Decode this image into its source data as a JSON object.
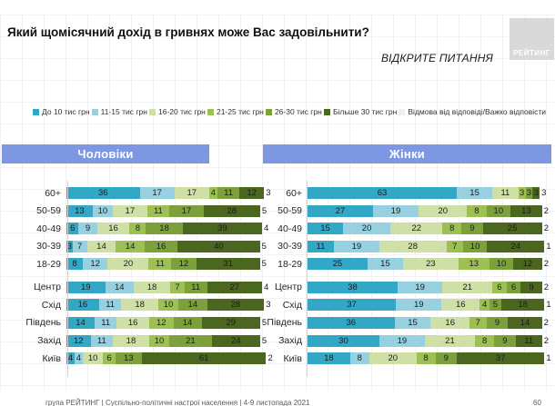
{
  "slide": {
    "title": "Який щомісячний дохід в гривнях може Вас задовільнити?",
    "subtitle": "ВІДКРИТЕ ПИТАННЯ",
    "logo_text": "РЕЙТИНГ",
    "footer": "група РЕЙТИНГ | Суспільно-політичні настрої населення | 4-9 листопада 2021",
    "page_number": "60"
  },
  "colors": {
    "header_bar": "#7d97e2",
    "logo_bg": "#d9d9d9"
  },
  "legend": [
    {
      "label": "До 10 тис грн",
      "color": "#33a7c6"
    },
    {
      "label": "11-15 тис грн",
      "color": "#97d0e0"
    },
    {
      "label": "16-20 тис грн",
      "color": "#cfe0a6"
    },
    {
      "label": "21-25 тис грн",
      "color": "#9dc054"
    },
    {
      "label": "26-30 тис грн",
      "color": "#7ba03c"
    },
    {
      "label": "Більше 30 тис грн",
      "color": "#4a661f"
    },
    {
      "label": "Відмова від відповіді/Важко відповісти",
      "color": "#f0f0f0"
    }
  ],
  "chart_data": [
    {
      "type": "bar",
      "title": "Чоловіки",
      "stacked": true,
      "orientation": "horizontal",
      "unit": "percent",
      "series_names": [
        "До 10 тис грн",
        "11-15 тис грн",
        "16-20 тис грн",
        "21-25 тис грн",
        "26-30 тис грн",
        "Більше 30 тис грн",
        "Відмова від відповіді/Важко відповісти"
      ],
      "groups": [
        {
          "categories": [
            "60+",
            "50-59",
            "40-49",
            "30-39",
            "18-29"
          ],
          "rows": [
            [
              36,
              17,
              17,
              4,
              11,
              12,
              3
            ],
            [
              13,
              10,
              17,
              11,
              17,
              28,
              5
            ],
            [
              6,
              9,
              16,
              8,
              18,
              39,
              4
            ],
            [
              3,
              7,
              14,
              14,
              16,
              40,
              5
            ],
            [
              8,
              12,
              20,
              11,
              12,
              31,
              5
            ]
          ]
        },
        {
          "categories": [
            "Центр",
            "Схід",
            "Південь",
            "Захід",
            "Київ"
          ],
          "rows": [
            [
              19,
              14,
              18,
              7,
              11,
              27,
              4
            ],
            [
              16,
              11,
              18,
              10,
              14,
              28,
              3
            ],
            [
              14,
              11,
              16,
              12,
              14,
              29,
              5
            ],
            [
              12,
              11,
              18,
              10,
              21,
              24,
              5
            ],
            [
              4,
              4,
              10,
              6,
              13,
              61,
              2
            ]
          ]
        }
      ]
    },
    {
      "type": "bar",
      "title": "Жінки",
      "stacked": true,
      "orientation": "horizontal",
      "unit": "percent",
      "series_names": [
        "До 10 тис грн",
        "11-15 тис грн",
        "16-20 тис грн",
        "21-25 тис грн",
        "26-30 тис грн",
        "Більше 30 тис грн",
        "Відмова від відповіді/Важко відповісти"
      ],
      "groups": [
        {
          "categories": [
            "60+",
            "50-59",
            "40-49",
            "30-39",
            "18-29"
          ],
          "rows": [
            [
              63,
              15,
              11,
              3,
              3,
              3,
              3
            ],
            [
              27,
              19,
              20,
              8,
              10,
              13,
              2
            ],
            [
              15,
              20,
              22,
              8,
              9,
              25,
              2
            ],
            [
              11,
              19,
              28,
              7,
              10,
              24,
              1
            ],
            [
              25,
              15,
              23,
              13,
              10,
              12,
              2
            ]
          ]
        },
        {
          "categories": [
            "Центр",
            "Схід",
            "Південь",
            "Захід",
            "Київ"
          ],
          "rows": [
            [
              38,
              19,
              21,
              6,
              6,
              9,
              2
            ],
            [
              37,
              19,
              16,
              4,
              5,
              18,
              1
            ],
            [
              36,
              15,
              16,
              7,
              9,
              14,
              2
            ],
            [
              30,
              19,
              21,
              8,
              9,
              11,
              2
            ],
            [
              18,
              8,
              20,
              8,
              9,
              37,
              1
            ]
          ]
        }
      ]
    }
  ]
}
